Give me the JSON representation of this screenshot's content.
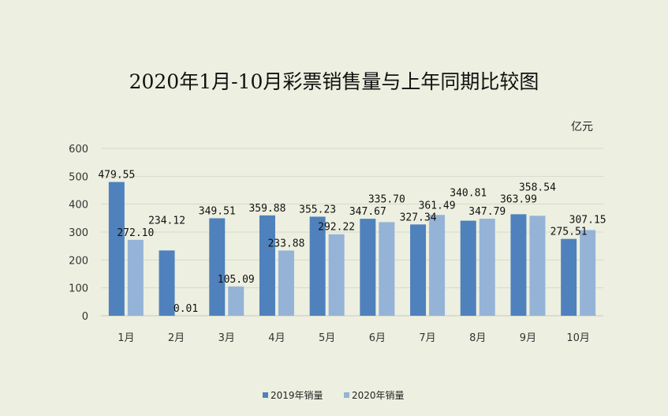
{
  "chart_data": {
    "type": "bar",
    "title": "2020年1月-10月彩票销售量与上年同期比较图",
    "unit": "亿元",
    "categories": [
      "1月",
      "2月",
      "3月",
      "4月",
      "5月",
      "6月",
      "7月",
      "8月",
      "9月",
      "10月"
    ],
    "series": [
      {
        "name": "2019年销量",
        "color": "#4f81bd",
        "values": [
          479.55,
          234.12,
          349.51,
          359.88,
          355.23,
          347.67,
          327.34,
          340.81,
          363.99,
          275.51
        ],
        "labels": [
          "479.55",
          "234.12",
          "349.51",
          "359.88",
          "355.23",
          "347.67",
          "327.34",
          "340.81",
          "363.99",
          "275.51"
        ]
      },
      {
        "name": "2020年销量",
        "color": "#95b3d7",
        "values": [
          272.1,
          0.01,
          105.09,
          233.88,
          292.22,
          335.7,
          361.49,
          347.79,
          358.54,
          307.15
        ],
        "labels": [
          "272.10",
          "0.01",
          "105.09",
          "233.88",
          "292.22",
          "335.70",
          "361.49",
          "347.79",
          "358.54",
          "307.15"
        ]
      }
    ],
    "ylim": [
      0,
      600
    ],
    "yticks": [
      0,
      100,
      200,
      300,
      400,
      500,
      600
    ],
    "grid": true,
    "legend": "bottom"
  }
}
